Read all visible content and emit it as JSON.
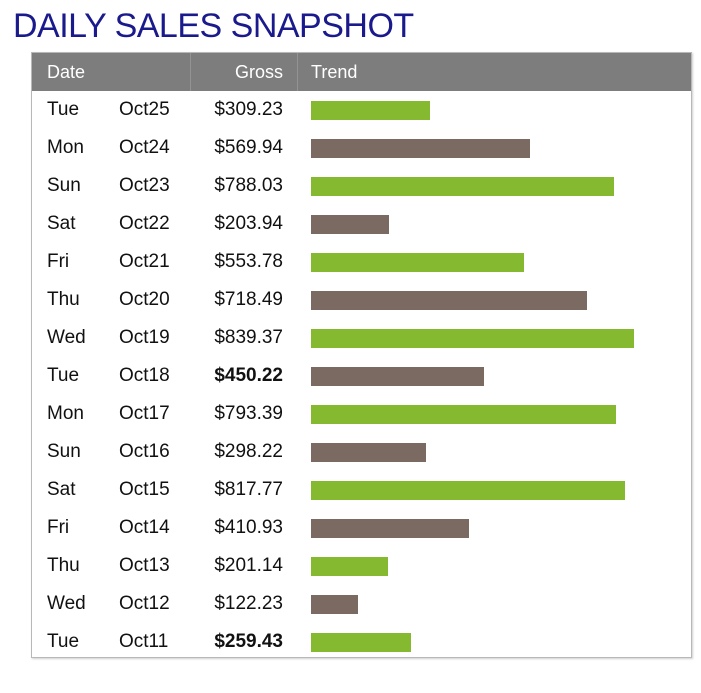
{
  "title": "DAILY SALES SNAPSHOT",
  "columns": {
    "date": "Date",
    "gross": "Gross",
    "trend": "Trend"
  },
  "colors": {
    "title": "#1a1a8c",
    "header_bg": "#7d7d7d",
    "bar_green": "#85b92f",
    "bar_brown": "#7a6a62"
  },
  "chart_data": {
    "type": "table",
    "columns": [
      "Date",
      "Gross",
      "Trend"
    ],
    "rows": [
      {
        "day": "Tue",
        "date": "Oct25",
        "gross": "$309.23",
        "value": 309.23,
        "color": "green",
        "bold": false
      },
      {
        "day": "Mon",
        "date": "Oct24",
        "gross": "$569.94",
        "value": 569.94,
        "color": "brown",
        "bold": false
      },
      {
        "day": "Sun",
        "date": "Oct23",
        "gross": "$788.03",
        "value": 788.03,
        "color": "green",
        "bold": false
      },
      {
        "day": "Sat",
        "date": "Oct22",
        "gross": "$203.94",
        "value": 203.94,
        "color": "brown",
        "bold": false
      },
      {
        "day": "Fri",
        "date": "Oct21",
        "gross": "$553.78",
        "value": 553.78,
        "color": "green",
        "bold": false
      },
      {
        "day": "Thu",
        "date": "Oct20",
        "gross": "$718.49",
        "value": 718.49,
        "color": "brown",
        "bold": false
      },
      {
        "day": "Wed",
        "date": "Oct19",
        "gross": "$839.37",
        "value": 839.37,
        "color": "green",
        "bold": false
      },
      {
        "day": "Tue",
        "date": "Oct18",
        "gross": "$450.22",
        "value": 450.22,
        "color": "brown",
        "bold": true
      },
      {
        "day": "Mon",
        "date": "Oct17",
        "gross": "$793.39",
        "value": 793.39,
        "color": "green",
        "bold": false
      },
      {
        "day": "Sun",
        "date": "Oct16",
        "gross": "$298.22",
        "value": 298.22,
        "color": "brown",
        "bold": false
      },
      {
        "day": "Sat",
        "date": "Oct15",
        "gross": "$817.77",
        "value": 817.77,
        "color": "green",
        "bold": false
      },
      {
        "day": "Fri",
        "date": "Oct14",
        "gross": "$410.93",
        "value": 410.93,
        "color": "brown",
        "bold": false
      },
      {
        "day": "Thu",
        "date": "Oct13",
        "gross": "$201.14",
        "value": 201.14,
        "color": "green",
        "bold": false
      },
      {
        "day": "Wed",
        "date": "Oct12",
        "gross": "$122.23",
        "value": 122.23,
        "color": "brown",
        "bold": false
      },
      {
        "day": "Tue",
        "date": "Oct11",
        "gross": "$259.43",
        "value": 259.43,
        "color": "green",
        "bold": true
      }
    ]
  }
}
